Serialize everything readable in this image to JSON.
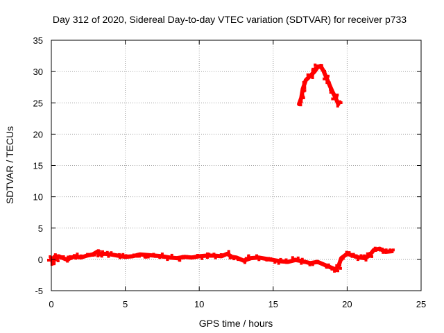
{
  "chart_data": {
    "type": "scatter",
    "title": "Day 312 of 2020, Sidereal Day-to-day VTEC variation (SDTVAR) for receiver p733",
    "xlabel": "GPS time / hours",
    "ylabel": "SDTVAR / TECUs",
    "xlim": [
      0,
      25
    ],
    "ylim": [
      -5,
      35
    ],
    "xticks": [
      0,
      5,
      10,
      15,
      20,
      25
    ],
    "yticks": [
      -5,
      0,
      5,
      10,
      15,
      20,
      25,
      30,
      35
    ],
    "grid": true,
    "legend": "none",
    "series": [
      {
        "color": "#ff0000",
        "x": [
          0.0,
          0.1,
          0.2,
          0.3,
          0.5,
          0.7,
          1.0,
          1.3,
          1.6,
          2.0,
          2.4,
          2.8,
          3.1,
          3.3,
          3.6,
          4.0,
          4.5,
          5.0,
          5.5,
          6.0,
          6.5,
          7.0,
          7.5,
          8.0,
          8.5,
          9.0,
          9.5,
          10.0,
          10.5,
          11.0,
          11.5,
          11.9,
          12.2,
          12.5,
          13.0,
          13.5,
          14.0,
          14.5,
          15.0,
          15.5,
          16.0,
          16.5,
          17.0,
          17.5,
          18.0,
          18.5,
          18.8,
          19.2,
          19.4,
          19.6,
          20.0,
          20.4,
          20.8,
          21.2,
          21.5,
          21.8,
          22.2,
          22.6,
          23.0
        ],
        "y": [
          0.2,
          -0.6,
          0.4,
          0.0,
          0.5,
          0.3,
          0.0,
          0.2,
          0.5,
          0.3,
          0.6,
          0.8,
          1.2,
          0.8,
          0.9,
          0.8,
          0.6,
          0.4,
          0.5,
          0.8,
          0.7,
          0.6,
          0.5,
          0.3,
          0.2,
          0.4,
          0.3,
          0.5,
          0.6,
          0.6,
          0.5,
          0.9,
          0.4,
          0.3,
          -0.2,
          0.2,
          0.3,
          0.1,
          -0.1,
          -0.3,
          -0.4,
          -0.1,
          -0.3,
          -0.6,
          -0.4,
          -0.9,
          -1.2,
          -1.6,
          -1.2,
          0.2,
          0.9,
          0.6,
          0.3,
          0.2,
          0.6,
          1.5,
          1.7,
          1.2,
          1.3
        ]
      },
      {
        "color": "#ff0000",
        "x": [
          16.75,
          16.9,
          17.0,
          17.2,
          17.5,
          17.8,
          18.0,
          18.2,
          18.4,
          18.6,
          18.8,
          19.0,
          19.2,
          19.4
        ],
        "y": [
          24.8,
          25.8,
          27.2,
          28.6,
          29.3,
          30.0,
          30.7,
          30.9,
          30.1,
          29.0,
          27.9,
          26.8,
          25.9,
          24.8
        ]
      }
    ]
  }
}
